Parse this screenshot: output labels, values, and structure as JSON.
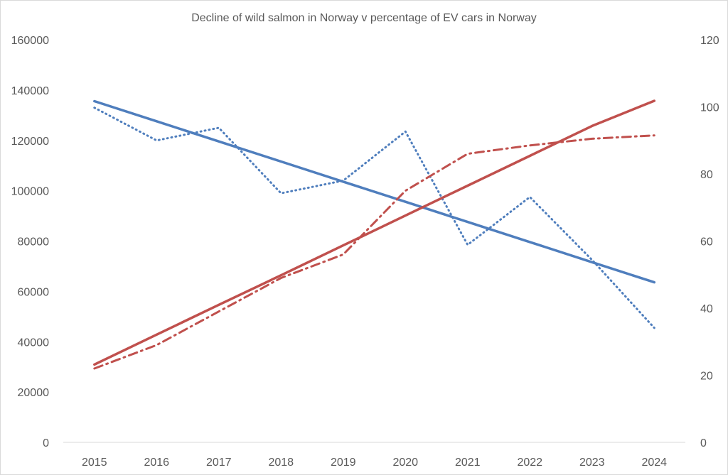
{
  "chart_data": {
    "type": "line",
    "title": "Decline of wild salmon in Norway v percentage of EV cars in Norway",
    "xlabel": "",
    "ylabel_left": "",
    "ylabel_right": "",
    "grid": false,
    "x": [
      "2015",
      "2016",
      "2017",
      "2018",
      "2019",
      "2020",
      "2021",
      "2022",
      "2023",
      "2024"
    ],
    "left_axis": {
      "min": 0,
      "max": 160000,
      "ticks": [
        "0",
        "20000",
        "40000",
        "60000",
        "80000",
        "100000",
        "120000",
        "140000",
        "160000"
      ]
    },
    "right_axis": {
      "min": 0,
      "max": 120,
      "ticks": [
        "0",
        "20",
        "40",
        "60",
        "80",
        "100",
        "120"
      ]
    },
    "series": [
      {
        "axis": "left",
        "color": "#4f7ebd",
        "style": "dotted",
        "values": [
          133000,
          120000,
          125000,
          99000,
          104000,
          123500,
          78500,
          97500,
          72500,
          45500
        ]
      },
      {
        "axis": "left",
        "color": "#4f7ebd",
        "style": "solid",
        "values": [
          135600,
          127600,
          119600,
          111600,
          103600,
          95600,
          87600,
          79600,
          71600,
          63600
        ]
      },
      {
        "axis": "right",
        "color": "#c0504d",
        "style": "dashdot",
        "values": [
          22,
          29,
          39,
          49,
          56,
          75,
          86,
          88.5,
          90.5,
          91.5
        ]
      },
      {
        "axis": "right",
        "color": "#c0504d",
        "style": "solid",
        "values": [
          23.2,
          32.1,
          41.0,
          49.8,
          58.7,
          67.6,
          76.5,
          85.4,
          94.3,
          101.8
        ]
      }
    ]
  }
}
